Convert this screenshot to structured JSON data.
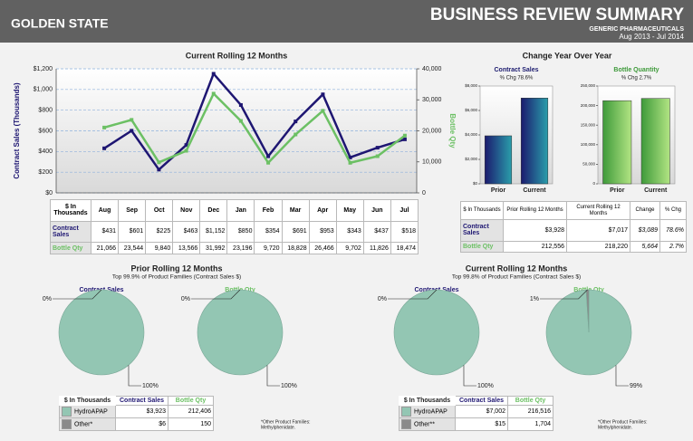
{
  "header": {
    "region": "GOLDEN STATE",
    "title": "BUSINESS REVIEW SUMMARY",
    "subtitle": "GENERIC PHARMACEUTICALS",
    "period": "Aug 2013 - Jul 2014"
  },
  "chart_data": [
    {
      "type": "line",
      "title": "Current Rolling 12 Months",
      "categories": [
        "Aug",
        "Sep",
        "Oct",
        "Nov",
        "Dec",
        "Jan",
        "Feb",
        "Mar",
        "Apr",
        "May",
        "Jun",
        "Jul"
      ],
      "ylabel": "Contract Sales (Thousands)",
      "y2label": "Bottle Qty",
      "ylim": [
        0,
        1200
      ],
      "yticks": [
        {
          "value": 0,
          "label": "$0"
        },
        {
          "value": 200,
          "label": "$200"
        },
        {
          "value": 400,
          "label": "$400"
        },
        {
          "value": 600,
          "label": "$600"
        },
        {
          "value": 800,
          "label": "$800"
        },
        {
          "value": 1000,
          "label": "$1,000"
        },
        {
          "value": 1200,
          "label": "$1,200"
        }
      ],
      "y2lim": [
        0,
        40000
      ],
      "y2ticks": [
        0,
        {
          "value": 10000,
          "label": "10,000"
        },
        {
          "value": 20000,
          "label": "20,000"
        },
        {
          "value": 30000,
          "label": "30,000"
        },
        {
          "value": 40000,
          "label": "40,000"
        }
      ],
      "grid": true,
      "table_header": "$ In Thousands",
      "series": [
        {
          "name": "Contract Sales",
          "color": "#1e1672",
          "values": [
            431,
            601,
            225,
            463,
            1152,
            850,
            354,
            691,
            953,
            343,
            437,
            518
          ],
          "value_labels": [
            "$431",
            "$601",
            "$225",
            "$463",
            "$1,152",
            "$850",
            "$354",
            "$691",
            "$953",
            "$343",
            "$437",
            "$518"
          ]
        },
        {
          "name": "Bottle Qty",
          "color": "#6cc064",
          "axis": "y2",
          "values": [
            21066,
            23544,
            9840,
            13566,
            31992,
            23196,
            9720,
            18828,
            26466,
            9702,
            11826,
            18474
          ],
          "value_labels": [
            "21,066",
            "23,544",
            "9,840",
            "13,566",
            "31,992",
            "23,196",
            "9,720",
            "18,828",
            "26,466",
            "9,702",
            "11,826",
            "18,474"
          ]
        }
      ]
    },
    {
      "type": "bar",
      "group_title": "Change Year Over Year",
      "title": "Contract Sales",
      "subtitle": "% Chg 78.6%",
      "categories": [
        "Prior",
        "Current"
      ],
      "values": [
        3928,
        7017
      ],
      "value_labels": [
        "$3,928",
        "$7,017"
      ],
      "color": [
        "#1b1a6e",
        "#2a9eab"
      ],
      "ylim": [
        0,
        8000
      ],
      "yticks": [
        {
          "value": 0,
          "label": "$0"
        },
        {
          "value": 2000,
          "label": "$2,000"
        },
        {
          "value": 4000,
          "label": "$4,000"
        },
        {
          "value": 6000,
          "label": "$6,000"
        },
        {
          "value": 8000,
          "label": "$8,000"
        }
      ]
    },
    {
      "type": "bar",
      "title": "Bottle Quantity",
      "subtitle": "% Chg 2.7%",
      "categories": [
        "Prior",
        "Current"
      ],
      "values": [
        212556,
        218220
      ],
      "value_labels": [
        "212,556",
        "218,220"
      ],
      "color": [
        "#3e9a3a",
        "#b2e483"
      ],
      "ylim": [
        0,
        250000
      ],
      "yticks": [
        0,
        {
          "value": 50000,
          "label": "50,000"
        },
        {
          "value": 100000,
          "label": "100,000"
        },
        {
          "value": 150000,
          "label": "150,000"
        },
        {
          "value": 200000,
          "label": "200,000"
        },
        {
          "value": 250000,
          "label": "250,000"
        }
      ]
    },
    {
      "type": "pie",
      "title": "Contract Sales",
      "values": [
        100,
        0
      ],
      "value_labels": [
        "100%",
        "0%"
      ],
      "colors": [
        "#93c6b3",
        "#8a8a8a"
      ]
    },
    {
      "type": "pie",
      "title": "Bottle Qty",
      "values": [
        100,
        0
      ],
      "value_labels": [
        "100%",
        "0%"
      ],
      "colors": [
        "#93c6b3",
        "#8a8a8a"
      ]
    },
    {
      "type": "pie",
      "title": "Contract Sales",
      "values": [
        100,
        0
      ],
      "value_labels": [
        "100%",
        "0%"
      ],
      "colors": [
        "#93c6b3",
        "#8a8a8a"
      ]
    },
    {
      "type": "pie",
      "title": "Bottle Qty",
      "values": [
        99,
        1
      ],
      "value_labels": [
        "99%",
        "1%"
      ],
      "colors": [
        "#93c6b3",
        "#8a8a8a"
      ]
    }
  ],
  "yoy_table": {
    "columns": [
      "$ In Thousands",
      "Prior Rolling 12 Months",
      "Current Rolling 12 Months",
      "Change",
      "% Chg"
    ],
    "rows": [
      {
        "label": "Contract Sales",
        "change": "$3,089",
        "pct": "78.6%"
      },
      {
        "label": "Bottle Qty",
        "change": "5,664",
        "pct": "2.7%"
      }
    ]
  },
  "pie_sections": [
    {
      "title": "Prior Rolling 12 Months",
      "subtitle": "Top 99.9% of Product Families (Contract Sales $)",
      "columns": [
        "$ In Thousands",
        "Contract Sales",
        "Bottle Qty"
      ],
      "rows": [
        [
          "HydroAPAP",
          "$3,923",
          "212,406"
        ],
        [
          "Other*",
          "$6",
          "150"
        ]
      ],
      "note": [
        "*Other Product Families:",
        "Methylphenidate."
      ]
    },
    {
      "title": "Current Rolling 12 Months",
      "subtitle": "Top 99.8% of Product Families (Contract Sales $)",
      "columns": [
        "$ In Thousands",
        "Contract Sales",
        "Bottle Qty"
      ],
      "rows": [
        [
          "HydroAPAP",
          "$7,002",
          "216,516"
        ],
        [
          "Other**",
          "$15",
          "1,704"
        ]
      ],
      "note": [
        "*Other Product Families:",
        "Methylphenidate."
      ]
    }
  ]
}
